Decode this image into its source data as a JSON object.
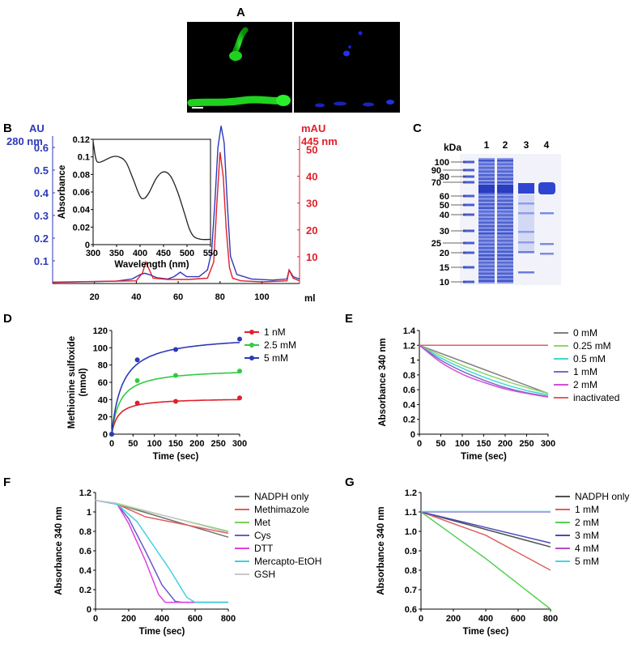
{
  "panel_letters": {
    "A": "A",
    "B": "B",
    "C": "C",
    "D": "D",
    "E": "E",
    "F": "F",
    "G": "G"
  },
  "colors": {
    "blue": "#2c39b8",
    "red": "#e0202a",
    "green_fluor": "#1fd21f",
    "blue_fluor": "#1a23e6"
  },
  "chart_data": [
    {
      "id": "B",
      "type": "line",
      "xlabel": "ml",
      "x_ticks": [
        20,
        40,
        60,
        80,
        100
      ],
      "xlim": [
        0,
        118
      ],
      "left_axis": {
        "label_lines": [
          "AU",
          "280 nm"
        ],
        "ylim": [
          0,
          0.65
        ],
        "ticks": [
          0.1,
          0.2,
          0.3,
          0.4,
          0.5,
          0.6
        ]
      },
      "right_axis": {
        "label_lines": [
          "mAU",
          "445 nm"
        ],
        "ylim": [
          0,
          55
        ],
        "ticks": [
          10,
          20,
          30,
          40,
          50
        ]
      },
      "series": [
        {
          "axis": "left",
          "color": "#2c39b8",
          "x": [
            0,
            30,
            38,
            42,
            44,
            46,
            50,
            55,
            58,
            61,
            64,
            70,
            74,
            76,
            77.5,
            79,
            80.5,
            82,
            83.5,
            85,
            88,
            95,
            105,
            112,
            113,
            115,
            118
          ],
          "y": [
            0.005,
            0.01,
            0.02,
            0.04,
            0.045,
            0.04,
            0.025,
            0.02,
            0.03,
            0.05,
            0.03,
            0.03,
            0.06,
            0.14,
            0.35,
            0.6,
            0.695,
            0.62,
            0.35,
            0.12,
            0.04,
            0.02,
            0.015,
            0.02,
            0.06,
            0.03,
            0.02
          ]
        },
        {
          "axis": "right",
          "color": "#e0202a",
          "x": [
            0,
            40,
            43,
            44.5,
            46,
            48,
            55,
            60,
            65,
            74,
            77,
            78.5,
            80,
            81.5,
            83,
            84.5,
            86,
            90,
            100,
            112,
            113,
            115,
            118
          ],
          "y": [
            0.5,
            1,
            4,
            8,
            5.5,
            2,
            1.5,
            1.5,
            1.5,
            2,
            8,
            30,
            49,
            40,
            20,
            6,
            2,
            1,
            0.6,
            1,
            5,
            2,
            1
          ]
        }
      ]
    },
    {
      "id": "B-inset",
      "type": "line",
      "xlabel": "Wavelength (nm)",
      "ylabel": "Absorbance",
      "xlim": [
        300,
        550
      ],
      "ylim": [
        0,
        0.12
      ],
      "x_ticks": [
        300,
        350,
        400,
        450,
        500,
        550
      ],
      "y_ticks": [
        "0",
        "0.02",
        "0.04",
        "0.06",
        "0.08",
        "0.1",
        "0.12"
      ],
      "series": [
        {
          "color": "#222222",
          "x": [
            300,
            305,
            310,
            320,
            340,
            355,
            370,
            385,
            400,
            410,
            420,
            435,
            450,
            465,
            480,
            495,
            505,
            515,
            530,
            550
          ],
          "y": [
            0.118,
            0.1,
            0.094,
            0.095,
            0.1,
            0.1,
            0.094,
            0.075,
            0.055,
            0.053,
            0.06,
            0.076,
            0.083,
            0.078,
            0.06,
            0.035,
            0.018,
            0.009,
            0.006,
            0.006
          ]
        }
      ]
    },
    {
      "id": "D",
      "type": "scatter",
      "ylabel_lines": [
        "Methionine sulfoxide",
        "(nmol)"
      ],
      "xlabel": "Time (sec)",
      "xlim": [
        0,
        300
      ],
      "ylim": [
        0,
        120
      ],
      "x_ticks": [
        0,
        50,
        100,
        150,
        200,
        250,
        300
      ],
      "y_ticks": [
        0,
        20,
        40,
        60,
        80,
        100,
        120
      ],
      "series": [
        {
          "name": "1 nM",
          "color": "#e0202a",
          "x": [
            0,
            60,
            150,
            300
          ],
          "y": [
            0,
            36,
            38,
            42
          ],
          "fit": {
            "vmax": 42,
            "k": 15
          }
        },
        {
          "name": "2.5 mM",
          "color": "#2ecc40",
          "x": [
            0,
            60,
            150,
            300
          ],
          "y": [
            0,
            62,
            68,
            73
          ],
          "fit": {
            "vmax": 76,
            "k": 20
          }
        },
        {
          "name": "5 mM",
          "color": "#2c39b8",
          "x": [
            0,
            60,
            150,
            300
          ],
          "y": [
            0,
            86,
            98,
            110
          ],
          "fit": {
            "vmax": 115,
            "k": 25
          }
        }
      ]
    },
    {
      "id": "E",
      "type": "line",
      "ylabel": "Absorbance 340 nm",
      "xlabel": "Time (sec)",
      "xlim": [
        0,
        300
      ],
      "ylim": [
        0,
        1.4
      ],
      "x_ticks": [
        0,
        50,
        100,
        150,
        200,
        250,
        300
      ],
      "y_ticks": [
        "0",
        "0.2",
        "0.4",
        "0.6",
        "0.8",
        "1",
        "1.2",
        "1.4"
      ],
      "series": [
        {
          "name": "0 mM",
          "color": "#808080",
          "x": [
            0,
            300
          ],
          "y": [
            1.2,
            0.55
          ]
        },
        {
          "name": "0.25 mM",
          "color": "#8fd66b",
          "x": [
            0,
            50,
            100,
            150,
            200,
            250,
            300
          ],
          "y": [
            1.2,
            1.06,
            0.93,
            0.82,
            0.72,
            0.63,
            0.55
          ]
        },
        {
          "name": "0.5 mM",
          "color": "#40d8d8",
          "x": [
            0,
            50,
            100,
            150,
            200,
            250,
            300
          ],
          "y": [
            1.2,
            1.03,
            0.89,
            0.77,
            0.67,
            0.59,
            0.53
          ]
        },
        {
          "name": "1 mM",
          "color": "#7b68c8",
          "x": [
            0,
            50,
            100,
            150,
            200,
            250,
            300
          ],
          "y": [
            1.2,
            1.0,
            0.85,
            0.73,
            0.63,
            0.56,
            0.51
          ]
        },
        {
          "name": "2 mM",
          "color": "#d44fd4",
          "x": [
            0,
            50,
            100,
            150,
            200,
            250,
            300
          ],
          "y": [
            1.2,
            0.97,
            0.81,
            0.7,
            0.61,
            0.55,
            0.5
          ]
        },
        {
          "name": "inactivated",
          "color": "#e06060",
          "x": [
            0,
            300
          ],
          "y": [
            1.2,
            1.2
          ]
        }
      ]
    },
    {
      "id": "F",
      "type": "line",
      "ylabel": "Absorbance 340 nm",
      "xlabel": "Time (sec)",
      "xlim": [
        0,
        800
      ],
      "ylim": [
        0,
        1.2
      ],
      "x_ticks": [
        0,
        200,
        400,
        600,
        800
      ],
      "y_ticks": [
        "0",
        "0.2",
        "0.4",
        "0.6",
        "0.8",
        "1",
        "1.2"
      ],
      "series": [
        {
          "name": "NADPH only",
          "color": "#707070",
          "x": [
            0,
            130,
            800
          ],
          "y": [
            1.12,
            1.08,
            0.74
          ]
        },
        {
          "name": "Methimazole",
          "color": "#e06060",
          "x": [
            0,
            130,
            300,
            800
          ],
          "y": [
            1.12,
            1.08,
            0.95,
            0.78
          ]
        },
        {
          "name": "Met",
          "color": "#7ccf5a",
          "x": [
            0,
            130,
            800
          ],
          "y": [
            1.12,
            1.08,
            0.8
          ]
        },
        {
          "name": "Cys",
          "color": "#6a5acd",
          "x": [
            0,
            130,
            200,
            300,
            400,
            480,
            520,
            800
          ],
          "y": [
            1.12,
            1.08,
            0.93,
            0.6,
            0.25,
            0.08,
            0.07,
            0.07
          ]
        },
        {
          "name": "DTT",
          "color": "#e040e0",
          "x": [
            0,
            130,
            200,
            300,
            380,
            420,
            800
          ],
          "y": [
            1.12,
            1.08,
            0.88,
            0.5,
            0.15,
            0.07,
            0.07
          ]
        },
        {
          "name": "Mercapto-EtOH",
          "color": "#40d0e0",
          "x": [
            0,
            130,
            250,
            350,
            450,
            550,
            600,
            800
          ],
          "y": [
            1.12,
            1.08,
            0.9,
            0.65,
            0.4,
            0.12,
            0.07,
            0.07
          ]
        },
        {
          "name": "GSH",
          "color": "#c8c8c8",
          "x": [
            0,
            128,
            800
          ],
          "y": [
            1.12,
            1.09,
            0.79
          ]
        }
      ]
    },
    {
      "id": "G",
      "type": "line",
      "ylabel": "Absorbance 340 nm",
      "xlabel": "Time (sec)",
      "xlim": [
        0,
        800
      ],
      "ylim": [
        0.6,
        1.2
      ],
      "x_ticks": [
        0,
        200,
        400,
        600,
        800
      ],
      "y_ticks": [
        "0.6",
        "0.7",
        "0.8",
        "0.9",
        "1.0",
        "1.1",
        "1.2"
      ],
      "series": [
        {
          "name": "NADPH only",
          "color": "#505050",
          "x": [
            0,
            800
          ],
          "y": [
            1.1,
            0.92
          ]
        },
        {
          "name": "1 mM",
          "color": "#e06060",
          "x": [
            0,
            200,
            400,
            600,
            800
          ],
          "y": [
            1.1,
            1.04,
            0.98,
            0.89,
            0.8
          ]
        },
        {
          "name": "2 mM",
          "color": "#55d055",
          "x": [
            0,
            200,
            400,
            600,
            800
          ],
          "y": [
            1.1,
            0.98,
            0.86,
            0.73,
            0.6
          ]
        },
        {
          "name": "3 mM",
          "color": "#4a4ab8",
          "x": [
            0,
            200,
            400,
            600,
            800
          ],
          "y": [
            1.1,
            1.06,
            1.02,
            0.98,
            0.94
          ]
        },
        {
          "name": "4 mM",
          "color": "#b050c0",
          "x": [
            0,
            800
          ],
          "y": [
            1.1,
            1.1
          ]
        },
        {
          "name": "5 mM",
          "color": "#40d8e8",
          "x": [
            0,
            800
          ],
          "y": [
            1.102,
            1.102
          ]
        }
      ]
    }
  ],
  "gel": {
    "unit": "kDa",
    "lanes": [
      "1",
      "2",
      "3",
      "4"
    ],
    "markers": [
      100,
      90,
      80,
      70,
      60,
      50,
      40,
      30,
      25,
      20,
      15,
      10
    ]
  }
}
